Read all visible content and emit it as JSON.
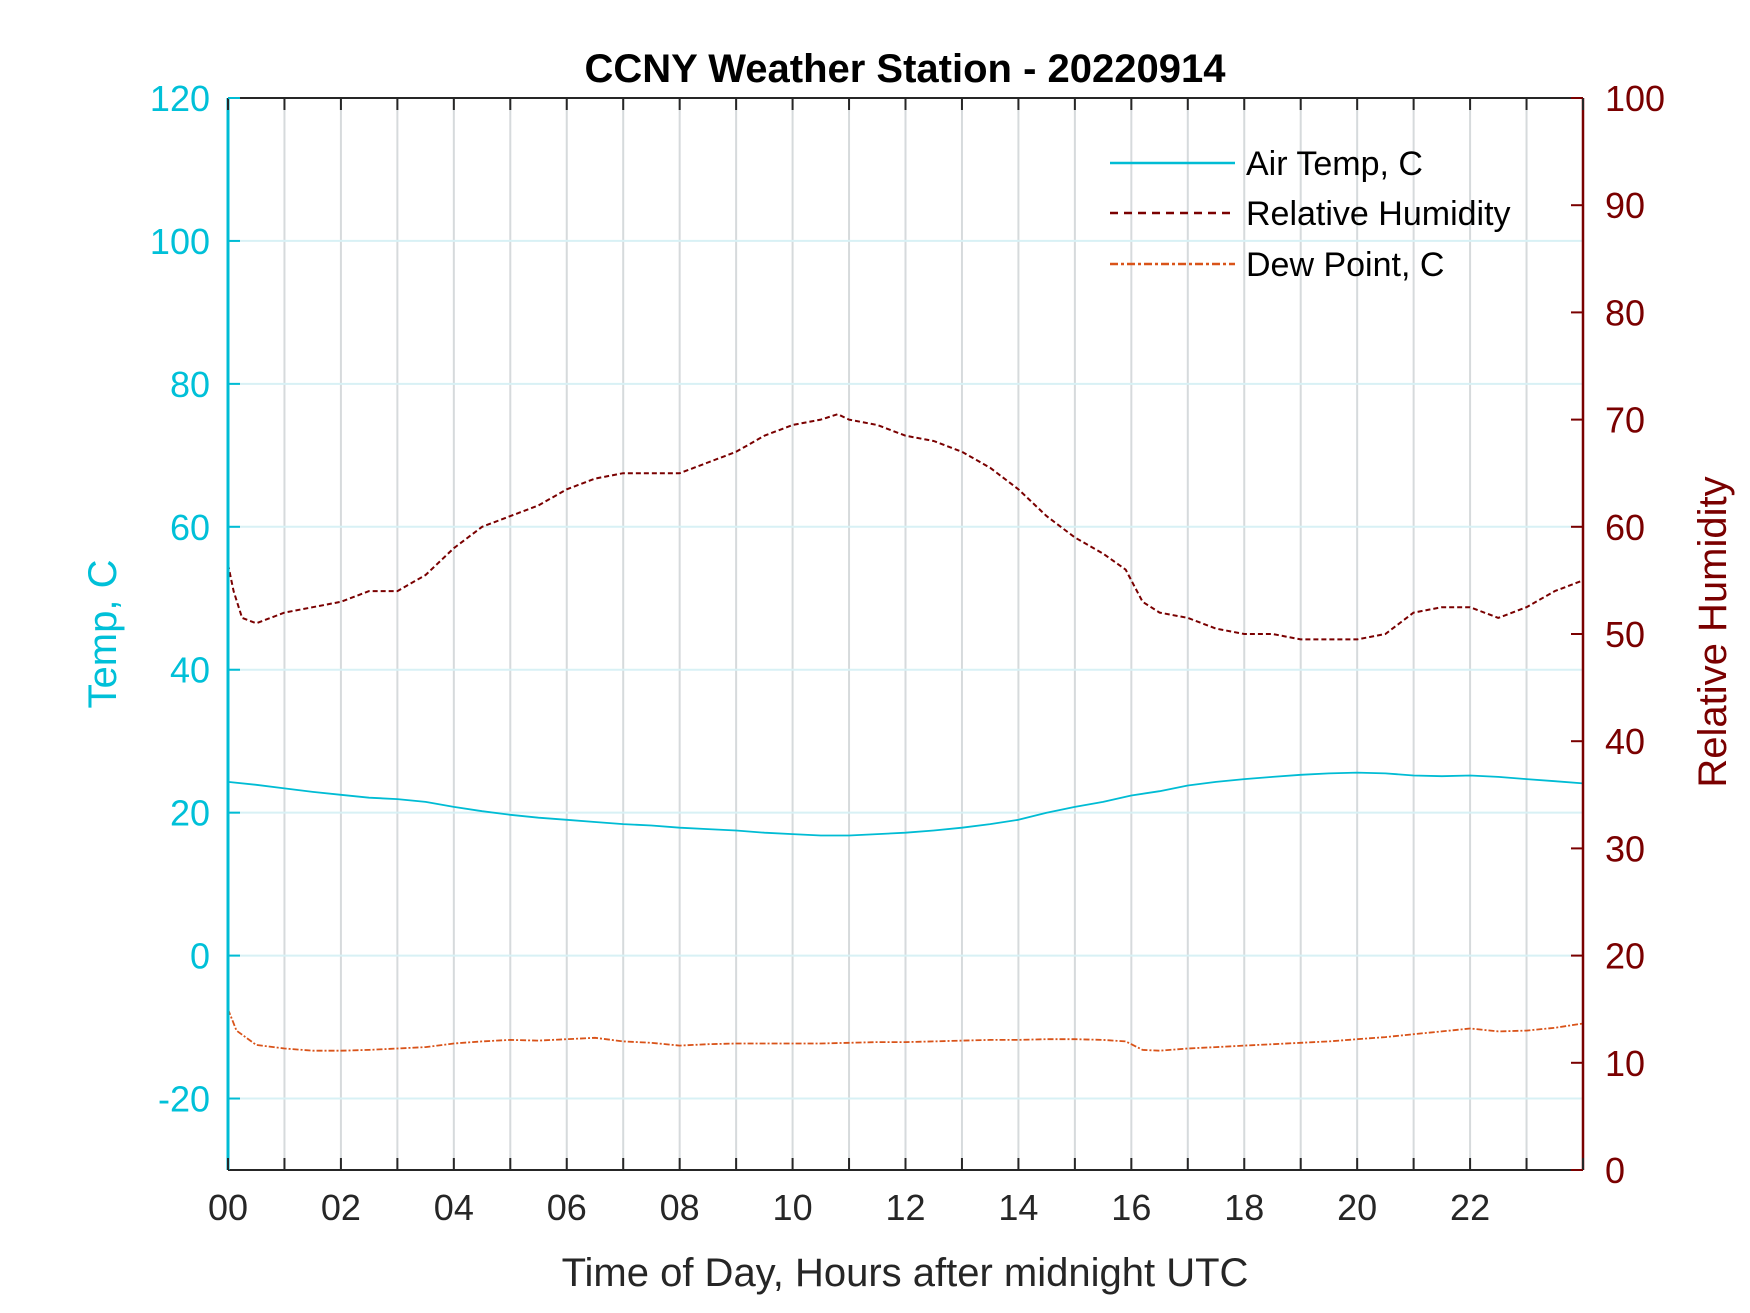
{
  "chart_data": {
    "type": "line",
    "title": "CCNY Weather Station - 20220914",
    "xlabel": "Time of Day, Hours after midnight UTC",
    "ylabel_left": "Temp, C",
    "ylabel_right": "Relative Humidity",
    "xlim": [
      0,
      24
    ],
    "ylim_left": [
      -30,
      120
    ],
    "ylim_right": [
      0,
      100
    ],
    "x_ticks": [
      0,
      2,
      4,
      6,
      8,
      10,
      12,
      14,
      16,
      18,
      20,
      22
    ],
    "x_tick_labels": [
      "00",
      "02",
      "04",
      "06",
      "08",
      "10",
      "12",
      "14",
      "16",
      "18",
      "20",
      "22"
    ],
    "y_left_ticks": [
      -20,
      0,
      20,
      40,
      60,
      80,
      100,
      120
    ],
    "y_right_ticks": [
      0,
      10,
      20,
      30,
      40,
      50,
      60,
      70,
      80,
      90,
      100
    ],
    "grid": {
      "vertical_every_hour": true,
      "horizontal_at_left_ticks": true
    },
    "legend_position": "top-right",
    "colors": {
      "temp": "#00bcd4",
      "rh": "#7a0000",
      "dew": "#d95319"
    },
    "series": [
      {
        "name": "Air Temp, C",
        "axis": "left",
        "style": "solid",
        "x": [
          0,
          0.5,
          1,
          1.5,
          2,
          2.5,
          3,
          3.5,
          4,
          4.5,
          5,
          5.5,
          6,
          6.5,
          7,
          7.5,
          8,
          8.5,
          9,
          9.5,
          10,
          10.5,
          11,
          11.5,
          12,
          12.5,
          13,
          13.5,
          14,
          14.5,
          15,
          15.5,
          16,
          16.5,
          17,
          17.5,
          18,
          18.5,
          19,
          19.5,
          20,
          20.5,
          21,
          21.5,
          22,
          22.5,
          23,
          23.5,
          24
        ],
        "values": [
          24.3,
          23.9,
          23.4,
          22.9,
          22.5,
          22.1,
          21.9,
          21.5,
          20.8,
          20.2,
          19.7,
          19.3,
          19.0,
          18.7,
          18.4,
          18.2,
          17.9,
          17.7,
          17.5,
          17.2,
          17.0,
          16.8,
          16.8,
          17.0,
          17.2,
          17.5,
          17.9,
          18.4,
          19.0,
          20.0,
          20.8,
          21.5,
          22.4,
          23.0,
          23.8,
          24.3,
          24.7,
          25.0,
          25.3,
          25.5,
          25.6,
          25.5,
          25.2,
          25.1,
          25.2,
          25.0,
          24.7,
          24.4,
          24.1
        ]
      },
      {
        "name": "Relative Humidity",
        "axis": "right",
        "style": "dashed",
        "x": [
          0,
          0.1,
          0.25,
          0.5,
          1,
          1.5,
          2,
          2.5,
          3,
          3.5,
          4,
          4.5,
          5,
          5.5,
          6,
          6.5,
          7,
          7.5,
          8,
          8.5,
          9,
          9.5,
          10,
          10.5,
          10.8,
          11,
          11.5,
          12,
          12.5,
          13,
          13.5,
          14,
          14.5,
          15,
          15.5,
          15.9,
          16.2,
          16.5,
          17,
          17.5,
          18,
          18.5,
          19,
          19.5,
          20,
          20.5,
          21,
          21.5,
          22,
          22.5,
          23,
          23.5,
          24
        ],
        "values": [
          56.5,
          54,
          51.5,
          51,
          52,
          52.5,
          53,
          54,
          54,
          55.5,
          58,
          60,
          61,
          62,
          63.5,
          64.5,
          65,
          65,
          65,
          66,
          67,
          68.5,
          69.5,
          70,
          70.5,
          70,
          69.5,
          68.5,
          68,
          67,
          65.5,
          63.5,
          61,
          59,
          57.5,
          56,
          53,
          52,
          51.5,
          50.5,
          50,
          50,
          49.5,
          49.5,
          49.5,
          50,
          52,
          52.5,
          52.5,
          51.5,
          52.5,
          54,
          55
        ]
      },
      {
        "name": "Dew Point, C",
        "axis": "left",
        "style": "dashdot",
        "x": [
          0,
          0.15,
          0.5,
          1,
          1.5,
          2,
          2.5,
          3,
          3.5,
          4,
          4.5,
          5,
          5.5,
          6,
          6.5,
          7,
          7.5,
          8,
          8.5,
          9,
          9.5,
          10,
          10.5,
          11,
          11.5,
          12,
          12.5,
          13,
          13.5,
          14,
          14.5,
          15,
          15.5,
          15.9,
          16.2,
          16.5,
          17,
          17.5,
          18,
          18.5,
          19,
          19.5,
          20,
          20.5,
          21,
          21.5,
          22,
          22.5,
          23,
          23.5,
          24
        ],
        "values": [
          -7.5,
          -10.5,
          -12.5,
          -13,
          -13.3,
          -13.3,
          -13.2,
          -13,
          -12.8,
          -12.3,
          -12,
          -11.8,
          -11.9,
          -11.7,
          -11.5,
          -12,
          -12.2,
          -12.6,
          -12.4,
          -12.3,
          -12.3,
          -12.3,
          -12.3,
          -12.2,
          -12.1,
          -12.1,
          -12,
          -11.9,
          -11.8,
          -11.8,
          -11.7,
          -11.7,
          -11.8,
          -12,
          -13.2,
          -13.3,
          -13,
          -12.8,
          -12.6,
          -12.4,
          -12.2,
          -12,
          -11.7,
          -11.4,
          -11,
          -10.6,
          -10.2,
          -10.6,
          -10.5,
          -10.1,
          -9.5
        ]
      }
    ]
  }
}
